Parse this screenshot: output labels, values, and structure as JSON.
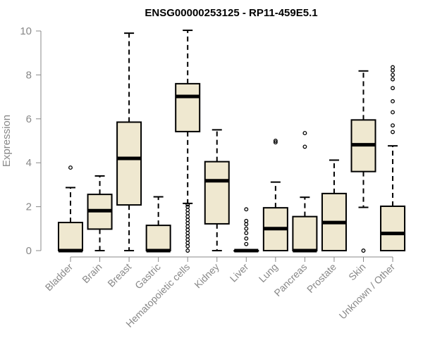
{
  "chart_data": {
    "type": "boxplot",
    "title": "ENSG00000253125 - RP11-459E5.1",
    "ylabel": "Expression",
    "xlabel": "",
    "ylim": [
      0,
      10
    ],
    "yticks": [
      "0",
      "2",
      "4",
      "6",
      "8",
      "10"
    ],
    "grid": false,
    "legend": "none",
    "colors": {
      "box_fill": "#efe8d0",
      "stroke": "#000000",
      "axis": "#888888"
    },
    "categories": [
      "Bladder",
      "Brain",
      "Breast",
      "Gastric",
      "Hematopoietic cells",
      "Kidney",
      "Liver",
      "Lung",
      "Pancreas",
      "Prostate",
      "Skin",
      "Unknown / Other"
    ],
    "boxes": [
      {
        "label": "Bladder",
        "whisker_low": 0,
        "q1": 0,
        "median": 0,
        "q3": 1.28,
        "whisker_high": 2.87,
        "outliers": [
          3.78
        ]
      },
      {
        "label": "Brain",
        "whisker_low": 0,
        "q1": 0.98,
        "median": 1.82,
        "q3": 2.56,
        "whisker_high": 3.4,
        "outliers": []
      },
      {
        "label": "Breast",
        "whisker_low": 0,
        "q1": 2.08,
        "median": 4.2,
        "q3": 5.85,
        "whisker_high": 9.9,
        "outliers": []
      },
      {
        "label": "Gastric",
        "whisker_low": 0,
        "q1": 0,
        "median": 0,
        "q3": 1.15,
        "whisker_high": 2.45,
        "outliers": []
      },
      {
        "label": "Hematopoietic cells",
        "whisker_low": 2.15,
        "q1": 5.42,
        "median": 7.02,
        "q3": 7.6,
        "whisker_high": 10.03,
        "outliers": [
          0,
          0.2,
          0.35,
          0.5,
          0.65,
          0.8,
          0.95,
          1.1,
          1.25,
          1.4,
          1.55,
          1.7,
          1.85,
          2.0,
          2.1
        ]
      },
      {
        "label": "Kidney",
        "whisker_low": 0,
        "q1": 1.22,
        "median": 3.18,
        "q3": 4.05,
        "whisker_high": 5.5,
        "outliers": []
      },
      {
        "label": "Liver",
        "whisker_low": 0,
        "q1": 0,
        "median": 0,
        "q3": 0,
        "whisker_high": 0,
        "outliers": [
          0.3,
          0.55,
          0.8,
          1.0,
          1.2,
          1.35,
          1.88
        ]
      },
      {
        "label": "Lung",
        "whisker_low": 0,
        "q1": 0,
        "median": 1.0,
        "q3": 1.95,
        "whisker_high": 3.12,
        "outliers": [
          4.93,
          5.0
        ]
      },
      {
        "label": "Pancreas",
        "whisker_low": 0,
        "q1": 0,
        "median": 0,
        "q3": 1.55,
        "whisker_high": 2.43,
        "outliers": [
          4.73,
          5.35
        ]
      },
      {
        "label": "Prostate",
        "whisker_low": 0,
        "q1": 0,
        "median": 1.28,
        "q3": 2.6,
        "whisker_high": 4.12,
        "outliers": []
      },
      {
        "label": "Skin",
        "whisker_low": 1.97,
        "q1": 3.6,
        "median": 4.82,
        "q3": 5.95,
        "whisker_high": 8.18,
        "outliers": [
          0
        ]
      },
      {
        "label": "Unknown / Other",
        "whisker_low": 0,
        "q1": 0,
        "median": 0.78,
        "q3": 2.02,
        "whisker_high": 4.77,
        "outliers": [
          5.4,
          5.7,
          6.3,
          6.8,
          7.4,
          7.8,
          8.0,
          8.2,
          8.35
        ]
      }
    ]
  }
}
